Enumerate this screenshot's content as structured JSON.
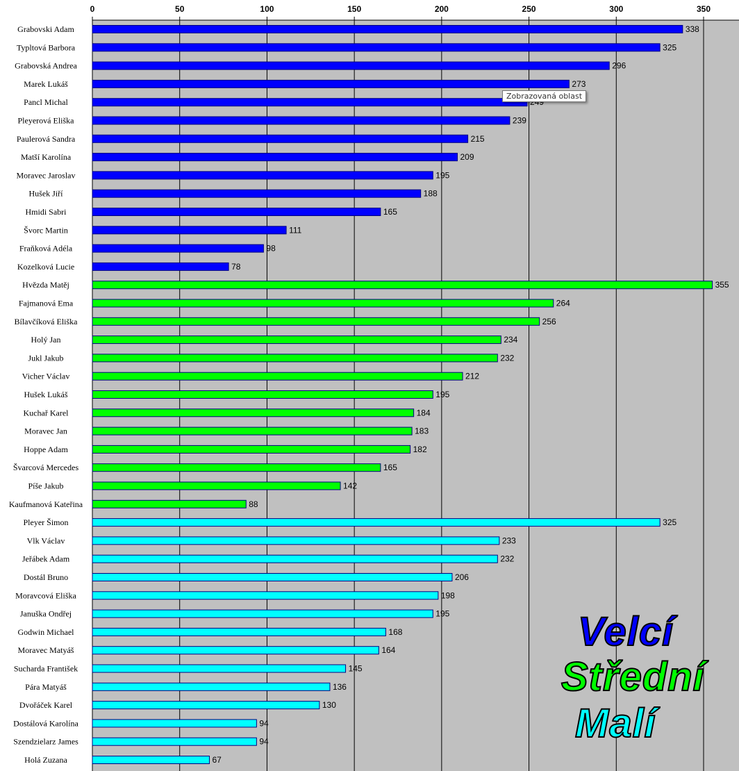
{
  "chart_data": {
    "type": "bar",
    "orientation": "horizontal",
    "xlim": [
      0,
      360
    ],
    "xticks": [
      0,
      50,
      100,
      150,
      200,
      250,
      300,
      350
    ],
    "grid": true,
    "groups": [
      {
        "name": "Velcí",
        "color": "#0000ff"
      },
      {
        "name": "Střední",
        "color": "#00ff00"
      },
      {
        "name": "Malí",
        "color": "#00ffff"
      }
    ],
    "categories": [
      "Grabovski Adam",
      "Typltová Barbora",
      "Grabovská Andrea",
      "Marek Lukáš",
      "Pancl Michal",
      "Pleyerová Eliška",
      "Paulerová Sandra",
      "Matší Karolína",
      "Moravec Jaroslav",
      "Hušek Jiří",
      "Hmidi Sabri",
      "Švorc Martin",
      "Fraňková Adéla",
      "Kozelková Lucie",
      "Hvězda Matěj",
      "Fajmanová Ema",
      "Bílavčíková Eliška",
      "Holý Jan",
      "Jukl Jakub",
      "Vicher Václav",
      "Hušek Lukáš",
      "Kuchař Karel",
      "Moravec Jan",
      "Hoppe Adam",
      "Švarcová Mercedes",
      "Píše Jakub",
      "Kaufmanová Kateřina",
      "Pleyer Šimon",
      "Vlk Václav",
      "Jeřábek Adam",
      "Dostál Bruno",
      "Moravcová Eliška",
      "Januška Ondřej",
      "Godwin Michael",
      "Moravec Matyáš",
      "Sucharda František",
      "Pára Matyáš",
      "Dvořáček Karel",
      "Dostálová Karolína",
      "Szendzielarz James",
      "Holá Zuzana"
    ],
    "values": [
      338,
      325,
      296,
      273,
      249,
      239,
      215,
      209,
      195,
      188,
      165,
      111,
      98,
      78,
      355,
      264,
      256,
      234,
      232,
      212,
      195,
      184,
      183,
      182,
      165,
      142,
      88,
      325,
      233,
      232,
      206,
      198,
      195,
      168,
      164,
      145,
      136,
      130,
      94,
      94,
      67
    ],
    "group_index": [
      0,
      0,
      0,
      0,
      0,
      0,
      0,
      0,
      0,
      0,
      0,
      0,
      0,
      0,
      1,
      1,
      1,
      1,
      1,
      1,
      1,
      1,
      1,
      1,
      1,
      1,
      1,
      2,
      2,
      2,
      2,
      2,
      2,
      2,
      2,
      2,
      2,
      2,
      2,
      2,
      2
    ]
  },
  "tooltip": "Zobrazovaná oblast"
}
